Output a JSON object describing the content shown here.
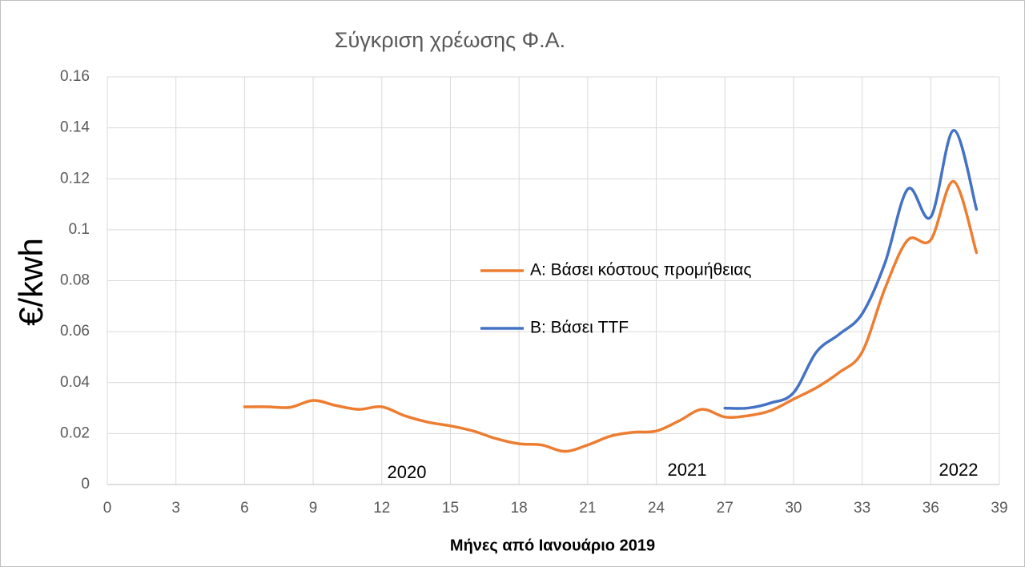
{
  "chart_data": {
    "type": "line",
    "title": "Σύγκριση χρέωσης Φ.Α.",
    "x_label": "Μήνες από Ιανουάριο 2019",
    "y_label": "€/kwh",
    "annotations": [
      "2020",
      "2021",
      "2022"
    ],
    "xlim": [
      0,
      39
    ],
    "xticks": [
      0,
      3,
      6,
      9,
      12,
      15,
      18,
      21,
      24,
      27,
      30,
      33,
      36,
      39
    ],
    "ylim": [
      0,
      0.16
    ],
    "yticks": [
      0,
      0.02,
      0.04,
      0.06,
      0.08,
      0.1,
      0.12,
      0.14,
      0.16
    ],
    "grid": true,
    "legend": "center",
    "series": [
      {
        "name": "A: Βάσει κόστους προμήθειας",
        "color": "#ed7d31",
        "x": [
          6,
          7,
          8,
          9,
          10,
          11,
          12,
          13,
          14,
          15,
          16,
          17,
          18,
          19,
          20,
          21,
          22,
          23,
          24,
          25,
          26,
          27,
          28,
          29,
          30,
          31,
          32,
          33,
          34,
          35,
          36,
          37,
          38
        ],
        "values": [
          0.0305,
          0.0305,
          0.0303,
          0.033,
          0.031,
          0.0295,
          0.0305,
          0.027,
          0.0245,
          0.023,
          0.021,
          0.018,
          0.016,
          0.0155,
          0.013,
          0.0155,
          0.019,
          0.0205,
          0.021,
          0.025,
          0.0295,
          0.0265,
          0.027,
          0.029,
          0.0335,
          0.038,
          0.044,
          0.052,
          0.077,
          0.096,
          0.096,
          0.119,
          0.091
        ]
      },
      {
        "name": "B: Βάσει TTF",
        "color": "#4472c4",
        "x": [
          27,
          28,
          29,
          30,
          31,
          32,
          33,
          34,
          35,
          36,
          37,
          38
        ],
        "values": [
          0.03,
          0.03,
          0.032,
          0.036,
          0.052,
          0.059,
          0.067,
          0.087,
          0.116,
          0.105,
          0.139,
          0.108
        ]
      }
    ]
  }
}
